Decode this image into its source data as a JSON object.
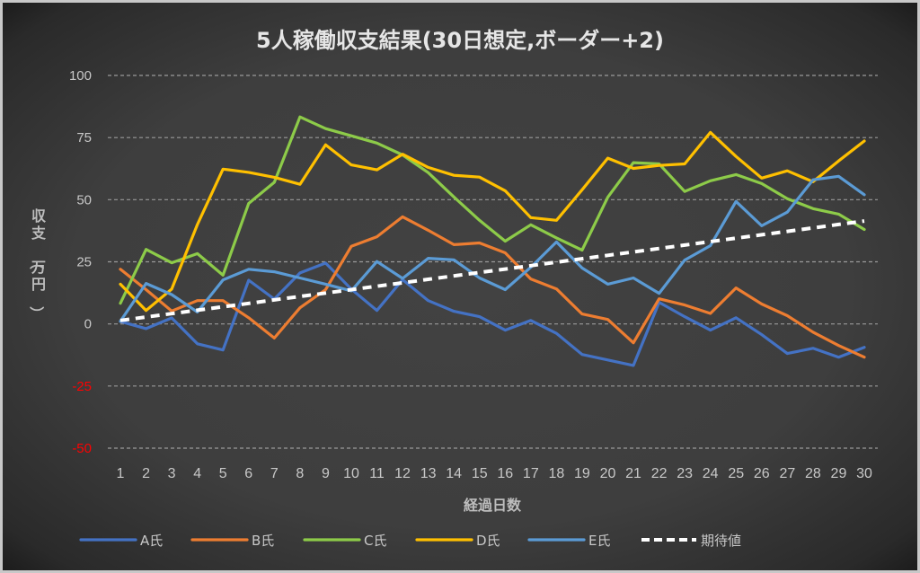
{
  "chart_data": {
    "type": "line",
    "title": "5人稼働収支結果(30日想定,ボーダー+2)",
    "xlabel": "経過日数",
    "ylabel": "収支（万円）",
    "ylim": [
      -50,
      100
    ],
    "yticks": [
      100,
      75,
      50,
      25,
      0,
      -25,
      -50
    ],
    "ytick_labels": [
      "100",
      "75",
      "50",
      "25",
      "0",
      "-25",
      "-50"
    ],
    "negative_tick_color": "#ff0000",
    "grid": true,
    "legend_position": "bottom",
    "categories": [
      "1",
      "2",
      "3",
      "4",
      "5",
      "6",
      "7",
      "8",
      "9",
      "10",
      "11",
      "12",
      "13",
      "14",
      "15",
      "16",
      "17",
      "18",
      "19",
      "20",
      "21",
      "22",
      "23",
      "24",
      "25",
      "26",
      "27",
      "28",
      "29",
      "30"
    ],
    "series": [
      {
        "name": "A氏",
        "color": "#4472C4",
        "style": "solid",
        "values": [
          1,
          -1.9,
          2.4,
          -8,
          -10.5,
          17.6,
          10,
          20.5,
          24.5,
          14,
          5.4,
          17.8,
          9.4,
          5.1,
          2.9,
          -2.5,
          1.4,
          -3.8,
          -12.3,
          -14.5,
          -16.7,
          8.7,
          2.9,
          -2.5,
          2.5,
          -4.3,
          -11.9,
          -9.8,
          -13.4,
          -9.4
        ]
      },
      {
        "name": "B氏",
        "color": "#ED7D31",
        "style": "solid",
        "values": [
          22,
          13.8,
          5.2,
          9.4,
          9.4,
          2.5,
          -5.7,
          6.5,
          13.8,
          31.2,
          35.1,
          43.1,
          37.7,
          31.9,
          32.6,
          28.6,
          18.1,
          14.1,
          4,
          1.8,
          -7.6,
          10.1,
          7.6,
          4.2,
          14.5,
          8,
          3.3,
          -3.3,
          -8.7,
          -13.4
        ]
      },
      {
        "name": "C氏",
        "color": "#8DCB49",
        "style": "solid",
        "values": [
          8.3,
          30,
          24.6,
          28.3,
          19.6,
          48.5,
          57,
          83.3,
          78.6,
          75.7,
          72.8,
          68,
          60.9,
          51.1,
          41.7,
          33.3,
          39.9,
          34.6,
          29.7,
          51,
          64.9,
          64.4,
          53.3,
          57.6,
          60.1,
          56.5,
          50.4,
          46.4,
          44.2,
          38
        ]
      },
      {
        "name": "D氏",
        "color": "#FFC000",
        "style": "solid",
        "values": [
          16,
          5.4,
          14,
          40,
          62.3,
          61,
          59,
          56.2,
          72.1,
          64,
          62,
          68.3,
          63,
          59.8,
          59.1,
          53.6,
          42.8,
          41.7,
          54,
          66.7,
          62.6,
          63.8,
          64.4,
          77.1,
          67.4,
          58.7,
          61.6,
          57.2,
          65.6,
          73.6
        ]
      },
      {
        "name": "E氏",
        "color": "#5B9BD5",
        "style": "solid",
        "values": [
          1.1,
          16.3,
          11.8,
          4.8,
          17.7,
          22,
          21,
          18.5,
          16,
          13.3,
          25.1,
          18.3,
          26.4,
          25.8,
          18.5,
          13.8,
          22.8,
          33,
          22.5,
          16,
          18.5,
          12.3,
          25.7,
          31.5,
          49.3,
          39.5,
          45,
          58,
          59.4,
          52
        ]
      },
      {
        "name": "期待値",
        "color": "#FFFFFF",
        "style": "dashed",
        "values": [
          1.38,
          2.76,
          4.14,
          5.52,
          6.9,
          8.28,
          9.66,
          11.04,
          12.42,
          13.8,
          15.18,
          16.56,
          17.94,
          19.32,
          20.7,
          22.08,
          23.46,
          24.84,
          26.22,
          27.6,
          28.98,
          30.36,
          31.74,
          33.12,
          34.5,
          35.88,
          37.26,
          38.64,
          40.02,
          41.4
        ]
      }
    ]
  }
}
